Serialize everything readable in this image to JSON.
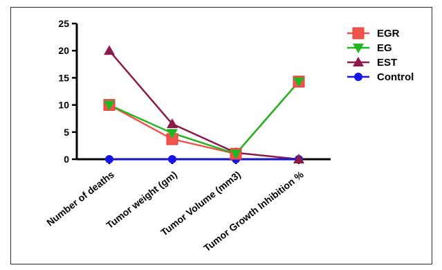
{
  "chart_data": {
    "type": "line",
    "categories": [
      "Number of deaths",
      "Tumor weight (gm)",
      "Tumor Volume (mm3)",
      "Tumor Growth Inhibition %"
    ],
    "ylim": [
      0,
      25
    ],
    "yticks": [
      0,
      5,
      10,
      15,
      20,
      25
    ],
    "grid": false,
    "legend_position": "top-right",
    "series": [
      {
        "name": "EGR",
        "values": [
          10,
          3.7,
          1.0,
          14.3
        ],
        "color": "#f2544c",
        "marker": "square"
      },
      {
        "name": "EG",
        "values": [
          10,
          4.8,
          1.0,
          14.3
        ],
        "color": "#22b522",
        "marker": "triangle-down"
      },
      {
        "name": "EST",
        "values": [
          20,
          6.5,
          1.2,
          0
        ],
        "color": "#8b1a4a",
        "marker": "triangle-up"
      },
      {
        "name": "Control",
        "values": [
          0,
          0,
          0,
          0
        ],
        "color": "#1515e8",
        "marker": "circle"
      }
    ]
  }
}
